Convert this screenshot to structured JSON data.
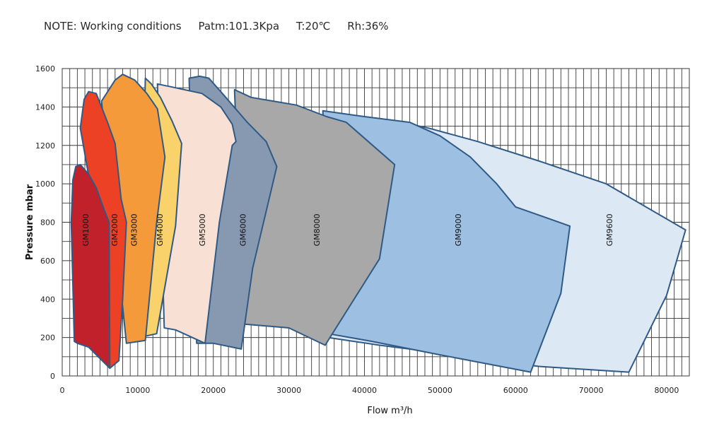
{
  "note": {
    "text": "NOTE: Working conditions     Patm:101.3Kpa     T:20℃     Rh:36%"
  },
  "chart_data": {
    "type": "area",
    "title": "",
    "xlabel": "Flow m³/h",
    "ylabel": "Pressure mbar",
    "xlim": [
      0,
      83000
    ],
    "ylim": [
      0,
      1600
    ],
    "grid": true,
    "x_ticks": [
      0,
      10000,
      20000,
      30000,
      40000,
      50000,
      60000,
      70000,
      80000
    ],
    "y_ticks": [
      0,
      200,
      400,
      600,
      800,
      1000,
      1200,
      1400,
      1600
    ],
    "x_tick_labels": [
      "0",
      "10000",
      "20000",
      "30000",
      "40000",
      "50000",
      "60000",
      "70000",
      "80000"
    ],
    "y_tick_labels": [
      "0",
      "200",
      "400",
      "600",
      "800",
      "1000",
      "1200",
      "1400",
      "1600"
    ],
    "series": [
      {
        "name": "GM9600",
        "color": "#dde8f5",
        "points": [
          [
            43700,
            1330
          ],
          [
            48500,
            1290
          ],
          [
            55000,
            1220
          ],
          [
            63000,
            1120
          ],
          [
            72000,
            1000
          ],
          [
            82500,
            760
          ],
          [
            80000,
            420
          ],
          [
            75000,
            20
          ],
          [
            63000,
            50
          ],
          [
            52000,
            110
          ],
          [
            42000,
            160
          ],
          [
            35200,
            200
          ],
          [
            36000,
            260
          ]
        ]
      },
      {
        "name": "GM9000",
        "color": "#9dbfe2",
        "points": [
          [
            34500,
            1380
          ],
          [
            40000,
            1350
          ],
          [
            46000,
            1320
          ],
          [
            50000,
            1250
          ],
          [
            54000,
            1140
          ],
          [
            57500,
            1000
          ],
          [
            60000,
            880
          ],
          [
            67200,
            780
          ],
          [
            66000,
            430
          ],
          [
            62000,
            20
          ],
          [
            50000,
            110
          ],
          [
            41000,
            180
          ],
          [
            35200,
            220
          ]
        ]
      },
      {
        "name": "GM8000",
        "color": "#a8a8a8",
        "points": [
          [
            22800,
            1490
          ],
          [
            25000,
            1450
          ],
          [
            31000,
            1410
          ],
          [
            35000,
            1350
          ],
          [
            37600,
            1320
          ],
          [
            44000,
            1100
          ],
          [
            42000,
            610
          ],
          [
            34800,
            160
          ],
          [
            30000,
            250
          ],
          [
            24000,
            270
          ]
        ]
      },
      {
        "name": "GM6000",
        "color": "#8799b1",
        "points": [
          [
            16800,
            1550
          ],
          [
            18200,
            1560
          ],
          [
            19400,
            1550
          ],
          [
            21200,
            1470
          ],
          [
            24500,
            1320
          ],
          [
            27000,
            1220
          ],
          [
            28400,
            1090
          ],
          [
            25200,
            560
          ],
          [
            23700,
            140
          ],
          [
            20000,
            170
          ],
          [
            17800,
            170
          ]
        ]
      },
      {
        "name": "GM5000",
        "color": "#f8e1d4",
        "points": [
          [
            12600,
            1520
          ],
          [
            15000,
            1500
          ],
          [
            18500,
            1470
          ],
          [
            21000,
            1400
          ],
          [
            22500,
            1310
          ],
          [
            23000,
            1220
          ],
          [
            22500,
            1200
          ],
          [
            20800,
            800
          ],
          [
            18900,
            170
          ],
          [
            15000,
            240
          ],
          [
            13500,
            250
          ]
        ]
      },
      {
        "name": "GM4000",
        "color": "#f9d26b",
        "points": [
          [
            11000,
            1550
          ],
          [
            11800,
            1520
          ],
          [
            13000,
            1450
          ],
          [
            14500,
            1330
          ],
          [
            15800,
            1210
          ],
          [
            15000,
            780
          ],
          [
            12500,
            220
          ],
          [
            10200,
            200
          ]
        ]
      },
      {
        "name": "GM3000",
        "color": "#f49a3b",
        "points": [
          [
            5200,
            1430
          ],
          [
            7000,
            1540
          ],
          [
            8000,
            1570
          ],
          [
            9600,
            1540
          ],
          [
            11200,
            1470
          ],
          [
            12600,
            1390
          ],
          [
            13600,
            1140
          ],
          [
            12500,
            800
          ],
          [
            11000,
            185
          ],
          [
            8500,
            170
          ]
        ]
      },
      {
        "name": "GM2000",
        "color": "#ec4125",
        "points": [
          [
            2400,
            1290
          ],
          [
            2900,
            1440
          ],
          [
            3500,
            1480
          ],
          [
            4500,
            1470
          ],
          [
            6000,
            1320
          ],
          [
            7000,
            1210
          ],
          [
            7800,
            920
          ],
          [
            8500,
            800
          ],
          [
            8000,
            400
          ],
          [
            7500,
            80
          ],
          [
            6300,
            40
          ],
          [
            5000,
            380
          ],
          [
            4000,
            930
          ]
        ]
      },
      {
        "name": "GM1000",
        "color": "#c0212a",
        "points": [
          [
            1400,
            1020
          ],
          [
            1800,
            1090
          ],
          [
            2400,
            1100
          ],
          [
            3500,
            1050
          ],
          [
            4500,
            980
          ],
          [
            5500,
            870
          ],
          [
            6200,
            800
          ],
          [
            6300,
            40
          ],
          [
            4500,
            110
          ],
          [
            3500,
            150
          ],
          [
            2000,
            170
          ],
          [
            1600,
            180
          ],
          [
            1200,
            800
          ]
        ]
      }
    ],
    "labels": [
      {
        "text": "GM1000",
        "x": 3200,
        "y": 760
      },
      {
        "text": "GM2000",
        "x": 7000,
        "y": 760
      },
      {
        "text": "GM3000",
        "x": 9600,
        "y": 760
      },
      {
        "text": "GM4000",
        "x": 13000,
        "y": 760
      },
      {
        "text": "GM5000",
        "x": 18600,
        "y": 760
      },
      {
        "text": "GM6000",
        "x": 24000,
        "y": 760
      },
      {
        "text": "GM8000",
        "x": 33800,
        "y": 760
      },
      {
        "text": "GM9000",
        "x": 52500,
        "y": 760
      },
      {
        "text": "GM9600",
        "x": 72500,
        "y": 760
      }
    ]
  }
}
